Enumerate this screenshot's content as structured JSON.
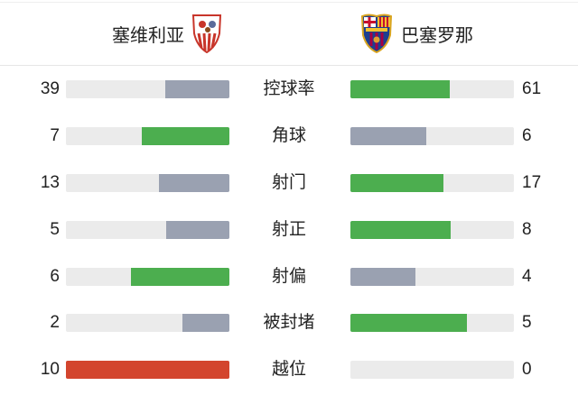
{
  "home": {
    "name": "塞维利亚",
    "logo": "sevilla-crest-icon"
  },
  "away": {
    "name": "巴塞罗那",
    "logo": "barcelona-crest-icon"
  },
  "colors": {
    "win": "#4cae4f",
    "lose": "#9aa1b1",
    "offside": "#d3452e",
    "track": "#ebebeb"
  },
  "stats": [
    {
      "label": "控球率",
      "home": "39",
      "away": "61",
      "home_val": 39,
      "away_val": 61
    },
    {
      "label": "角球",
      "home": "7",
      "away": "6",
      "home_val": 7,
      "away_val": 6
    },
    {
      "label": "射门",
      "home": "13",
      "away": "17",
      "home_val": 13,
      "away_val": 17
    },
    {
      "label": "射正",
      "home": "5",
      "away": "8",
      "home_val": 5,
      "away_val": 8
    },
    {
      "label": "射偏",
      "home": "6",
      "away": "4",
      "home_val": 6,
      "away_val": 4
    },
    {
      "label": "被封堵",
      "home": "2",
      "away": "5",
      "home_val": 2,
      "away_val": 5
    },
    {
      "label": "越位",
      "home": "10",
      "away": "0",
      "home_val": 10,
      "away_val": 0
    }
  ]
}
